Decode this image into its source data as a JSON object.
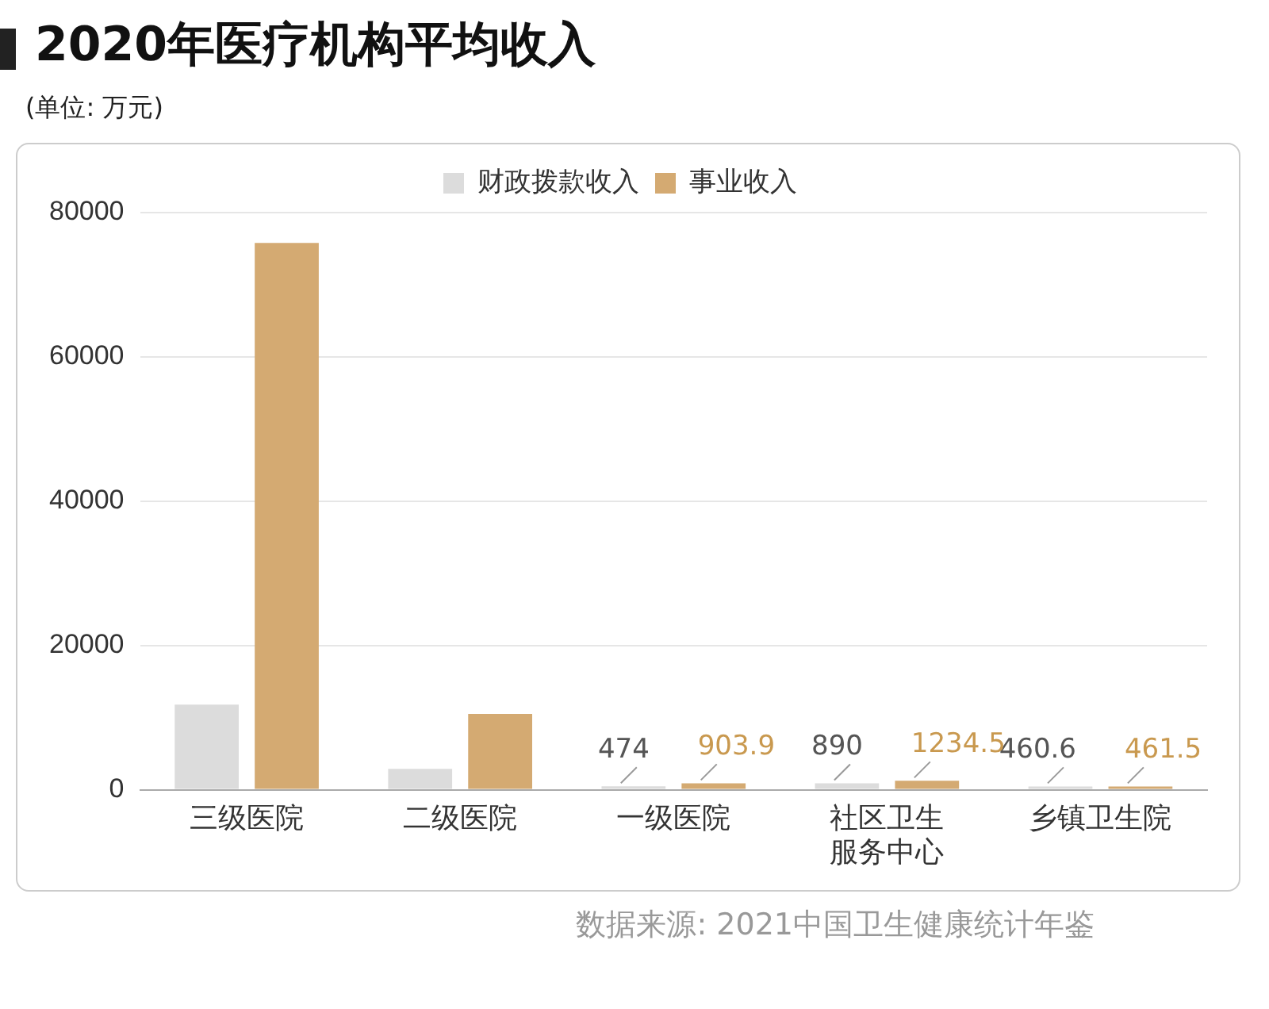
{
  "chart_data": {
    "type": "bar",
    "title": "2020年医疗机构平均收入",
    "subtitle": "(单位: 万元)",
    "categories": [
      "三级医院",
      "二级医院",
      "一级医院",
      "社区卫生服务中心",
      "乡镇卫生院"
    ],
    "series": [
      {
        "name": "财政拨款收入",
        "color": "#dcdcdc",
        "values": [
          11800,
          2900,
          474,
          890,
          460.6
        ],
        "value_labels": [
          null,
          null,
          "474",
          "890",
          "460.6"
        ]
      },
      {
        "name": "事业收入",
        "color": "#d4aa72",
        "values": [
          75800,
          10500,
          903.9,
          1234.5,
          461.5
        ],
        "value_labels": [
          null,
          null,
          "903.9",
          "1234.5",
          "461.5"
        ]
      }
    ],
    "ylim": [
      0,
      80000
    ],
    "yticks": [
      0,
      20000,
      40000,
      60000,
      80000
    ],
    "grid": "y",
    "legend": "top",
    "annotations": [
      "数据来源: 2021中国卫生健康统计年鉴"
    ]
  }
}
